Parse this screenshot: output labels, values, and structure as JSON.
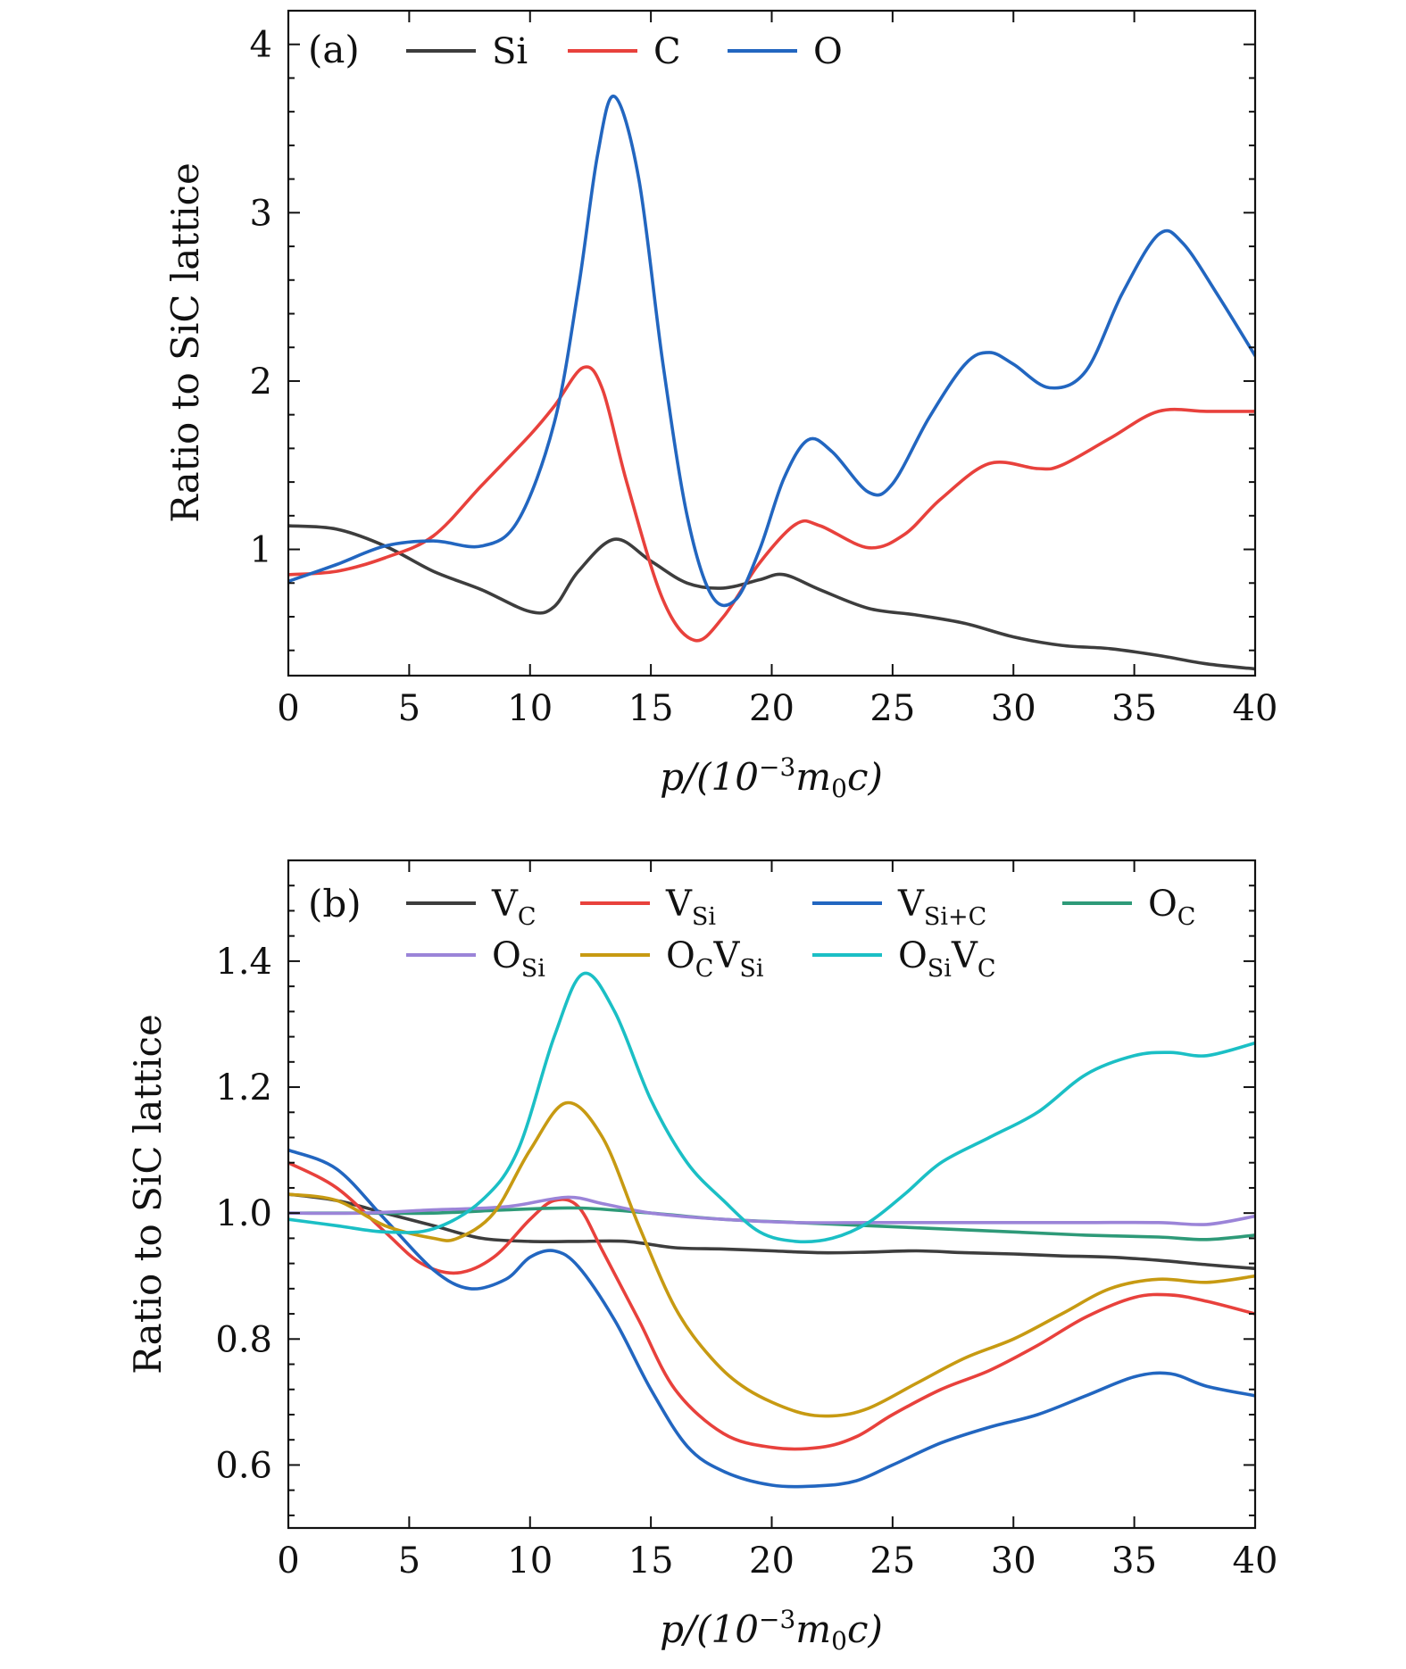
{
  "chart_data": [
    {
      "type": "line",
      "panel_label": "(a)",
      "ylabel": "Ratio to SiC lattice",
      "xlabel": {
        "base": "p/(10",
        "exp": "−3",
        "mid": "m",
        "sub": "0",
        "end": "c)"
      },
      "xlim": [
        0,
        40
      ],
      "ylim": [
        0.25,
        4.2
      ],
      "xticks": [
        0,
        5,
        10,
        15,
        20,
        25,
        30,
        35,
        40
      ],
      "yticks": [
        1,
        2,
        3,
        4
      ],
      "grid": false,
      "legend_position": "top",
      "series": [
        {
          "name": "Si",
          "name_sub": "",
          "name2": "",
          "name2_sub": "",
          "color": "#3d3d3d",
          "points": [
            [
              0,
              1.14
            ],
            [
              2,
              1.12
            ],
            [
              4,
              1.02
            ],
            [
              6,
              0.87
            ],
            [
              8,
              0.76
            ],
            [
              10,
              0.63
            ],
            [
              11,
              0.66
            ],
            [
              12,
              0.87
            ],
            [
              13.5,
              1.06
            ],
            [
              15,
              0.93
            ],
            [
              16.5,
              0.8
            ],
            [
              18,
              0.77
            ],
            [
              19.5,
              0.82
            ],
            [
              20.5,
              0.85
            ],
            [
              22,
              0.76
            ],
            [
              24,
              0.65
            ],
            [
              26,
              0.61
            ],
            [
              28,
              0.56
            ],
            [
              30,
              0.48
            ],
            [
              32,
              0.43
            ],
            [
              34,
              0.41
            ],
            [
              36,
              0.37
            ],
            [
              38,
              0.32
            ],
            [
              40,
              0.29
            ]
          ]
        },
        {
          "name": "C",
          "name_sub": "",
          "name2": "",
          "name2_sub": "",
          "color": "#e8413c",
          "points": [
            [
              0,
              0.85
            ],
            [
              2,
              0.87
            ],
            [
              4,
              0.95
            ],
            [
              6,
              1.08
            ],
            [
              8,
              1.38
            ],
            [
              10,
              1.68
            ],
            [
              11,
              1.85
            ],
            [
              12.2,
              2.08
            ],
            [
              13,
              1.95
            ],
            [
              14,
              1.4
            ],
            [
              15.5,
              0.7
            ],
            [
              16.8,
              0.46
            ],
            [
              18,
              0.6
            ],
            [
              19.5,
              0.92
            ],
            [
              21,
              1.15
            ],
            [
              22,
              1.14
            ],
            [
              24,
              1.01
            ],
            [
              25.5,
              1.09
            ],
            [
              27,
              1.3
            ],
            [
              29,
              1.51
            ],
            [
              31,
              1.48
            ],
            [
              32,
              1.5
            ],
            [
              34,
              1.66
            ],
            [
              36,
              1.82
            ],
            [
              38,
              1.82
            ],
            [
              40,
              1.82
            ]
          ]
        },
        {
          "name": "O",
          "name_sub": "",
          "name2": "",
          "name2_sub": "",
          "color": "#2266c0",
          "points": [
            [
              0,
              0.81
            ],
            [
              2,
              0.91
            ],
            [
              4,
              1.02
            ],
            [
              6,
              1.05
            ],
            [
              8,
              1.02
            ],
            [
              9.5,
              1.17
            ],
            [
              11,
              1.75
            ],
            [
              12,
              2.55
            ],
            [
              12.8,
              3.35
            ],
            [
              13.5,
              3.69
            ],
            [
              14.5,
              3.2
            ],
            [
              15.5,
              2.1
            ],
            [
              16.5,
              1.2
            ],
            [
              17.5,
              0.73
            ],
            [
              18.5,
              0.7
            ],
            [
              19.5,
              1.0
            ],
            [
              20.5,
              1.42
            ],
            [
              21.5,
              1.65
            ],
            [
              22.5,
              1.58
            ],
            [
              24,
              1.34
            ],
            [
              25,
              1.39
            ],
            [
              26.5,
              1.78
            ],
            [
              28,
              2.1
            ],
            [
              29,
              2.17
            ],
            [
              30,
              2.1
            ],
            [
              31.5,
              1.96
            ],
            [
              33,
              2.06
            ],
            [
              34.5,
              2.52
            ],
            [
              36,
              2.87
            ],
            [
              37,
              2.82
            ],
            [
              38.5,
              2.5
            ],
            [
              40,
              2.15
            ]
          ]
        }
      ]
    },
    {
      "type": "line",
      "panel_label": "(b)",
      "ylabel": "Ratio to SiC lattice",
      "xlabel": {
        "base": "p/(10",
        "exp": "−3",
        "mid": "m",
        "sub": "0",
        "end": "c)"
      },
      "xlim": [
        0,
        40
      ],
      "ylim": [
        0.5,
        1.56
      ],
      "xticks": [
        0,
        5,
        10,
        15,
        20,
        25,
        30,
        35,
        40
      ],
      "yticks": [
        0.6,
        0.8,
        1.0,
        1.2,
        1.4
      ],
      "ytick_labels": [
        "0.6",
        "0.8",
        "1.0",
        "1.2",
        "1.4"
      ],
      "grid": false,
      "legend_position": "top",
      "series": [
        {
          "name": "V",
          "name_sub": "C",
          "name2": "",
          "name2_sub": "",
          "color": "#3d3d3d",
          "points": [
            [
              0,
              1.03
            ],
            [
              2,
              1.02
            ],
            [
              4,
              1.0
            ],
            [
              6,
              0.98
            ],
            [
              8,
              0.96
            ],
            [
              10,
              0.955
            ],
            [
              12,
              0.955
            ],
            [
              14,
              0.955
            ],
            [
              16,
              0.945
            ],
            [
              18,
              0.943
            ],
            [
              20,
              0.94
            ],
            [
              22,
              0.937
            ],
            [
              24,
              0.938
            ],
            [
              26,
              0.94
            ],
            [
              28,
              0.937
            ],
            [
              30,
              0.935
            ],
            [
              32,
              0.932
            ],
            [
              34,
              0.93
            ],
            [
              36,
              0.925
            ],
            [
              38,
              0.918
            ],
            [
              40,
              0.912
            ]
          ]
        },
        {
          "name": "V",
          "name_sub": "Si",
          "name2": "",
          "name2_sub": "",
          "color": "#e8413c",
          "points": [
            [
              0,
              1.08
            ],
            [
              2,
              1.04
            ],
            [
              4,
              0.97
            ],
            [
              5.5,
              0.92
            ],
            [
              7,
              0.905
            ],
            [
              8.5,
              0.93
            ],
            [
              10,
              0.99
            ],
            [
              11,
              1.02
            ],
            [
              12,
              1.01
            ],
            [
              13,
              0.94
            ],
            [
              14.5,
              0.83
            ],
            [
              16,
              0.72
            ],
            [
              18,
              0.65
            ],
            [
              20,
              0.628
            ],
            [
              22,
              0.628
            ],
            [
              23.5,
              0.645
            ],
            [
              25,
              0.68
            ],
            [
              27,
              0.72
            ],
            [
              29,
              0.75
            ],
            [
              31,
              0.79
            ],
            [
              33,
              0.835
            ],
            [
              35,
              0.866
            ],
            [
              36.5,
              0.87
            ],
            [
              38,
              0.86
            ],
            [
              40,
              0.84
            ]
          ]
        },
        {
          "name": "V",
          "name_sub": "Si+C",
          "name2": "",
          "name2_sub": "",
          "color": "#2266c0",
          "points": [
            [
              0,
              1.1
            ],
            [
              2,
              1.07
            ],
            [
              4,
              0.99
            ],
            [
              6,
              0.91
            ],
            [
              7.5,
              0.88
            ],
            [
              9,
              0.895
            ],
            [
              10,
              0.93
            ],
            [
              11,
              0.94
            ],
            [
              12,
              0.915
            ],
            [
              13.5,
              0.83
            ],
            [
              15,
              0.72
            ],
            [
              16.5,
              0.63
            ],
            [
              18,
              0.59
            ],
            [
              20,
              0.568
            ],
            [
              22,
              0.567
            ],
            [
              23.5,
              0.575
            ],
            [
              25,
              0.6
            ],
            [
              27,
              0.635
            ],
            [
              29,
              0.66
            ],
            [
              31,
              0.68
            ],
            [
              33,
              0.71
            ],
            [
              35,
              0.74
            ],
            [
              36.5,
              0.745
            ],
            [
              38,
              0.725
            ],
            [
              40,
              0.71
            ]
          ]
        },
        {
          "name": "O",
          "name_sub": "C",
          "name2": "",
          "name2_sub": "",
          "color": "#2e9a78",
          "points": [
            [
              0,
              1.0
            ],
            [
              3,
              1.0
            ],
            [
              6,
              1.0
            ],
            [
              9,
              1.005
            ],
            [
              12,
              1.008
            ],
            [
              15,
              1.0
            ],
            [
              18,
              0.99
            ],
            [
              21,
              0.985
            ],
            [
              24,
              0.98
            ],
            [
              27,
              0.975
            ],
            [
              30,
              0.97
            ],
            [
              33,
              0.965
            ],
            [
              36,
              0.962
            ],
            [
              38,
              0.958
            ],
            [
              40,
              0.965
            ]
          ]
        },
        {
          "name": "O",
          "name_sub": "Si",
          "name2": "",
          "name2_sub": "",
          "color": "#9b84d8",
          "points": [
            [
              0,
              1.0
            ],
            [
              3,
              1.0
            ],
            [
              6,
              1.005
            ],
            [
              9,
              1.01
            ],
            [
              11.5,
              1.025
            ],
            [
              13,
              1.015
            ],
            [
              15,
              1.0
            ],
            [
              18,
              0.99
            ],
            [
              21,
              0.985
            ],
            [
              24,
              0.985
            ],
            [
              27,
              0.985
            ],
            [
              30,
              0.985
            ],
            [
              33,
              0.985
            ],
            [
              36,
              0.985
            ],
            [
              38,
              0.982
            ],
            [
              40,
              0.995
            ]
          ]
        },
        {
          "name": "O",
          "name_sub": "C",
          "name2": "V",
          "name2_sub": "Si",
          "color": "#c79a12",
          "points": [
            [
              0,
              1.03
            ],
            [
              2,
              1.02
            ],
            [
              4,
              0.98
            ],
            [
              6,
              0.96
            ],
            [
              7,
              0.96
            ],
            [
              8.5,
              1.0
            ],
            [
              10,
              1.1
            ],
            [
              11.5,
              1.175
            ],
            [
              13,
              1.12
            ],
            [
              14.5,
              0.98
            ],
            [
              16,
              0.85
            ],
            [
              17.5,
              0.77
            ],
            [
              19,
              0.72
            ],
            [
              21,
              0.685
            ],
            [
              22.5,
              0.678
            ],
            [
              24,
              0.69
            ],
            [
              26,
              0.73
            ],
            [
              28,
              0.77
            ],
            [
              30,
              0.8
            ],
            [
              32,
              0.84
            ],
            [
              34,
              0.88
            ],
            [
              36,
              0.895
            ],
            [
              38,
              0.89
            ],
            [
              40,
              0.9
            ]
          ]
        },
        {
          "name": "O",
          "name_sub": "Si",
          "name2": "V",
          "name2_sub": "C",
          "color": "#1bbfc5",
          "points": [
            [
              0,
              0.99
            ],
            [
              2,
              0.98
            ],
            [
              4,
              0.97
            ],
            [
              6,
              0.975
            ],
            [
              8,
              1.02
            ],
            [
              9.5,
              1.1
            ],
            [
              11,
              1.28
            ],
            [
              12.2,
              1.38
            ],
            [
              13.5,
              1.32
            ],
            [
              15,
              1.18
            ],
            [
              16.5,
              1.08
            ],
            [
              18,
              1.02
            ],
            [
              19.5,
              0.97
            ],
            [
              21,
              0.955
            ],
            [
              22.5,
              0.96
            ],
            [
              24,
              0.985
            ],
            [
              25.5,
              1.03
            ],
            [
              27,
              1.08
            ],
            [
              29,
              1.12
            ],
            [
              31,
              1.16
            ],
            [
              33,
              1.22
            ],
            [
              35,
              1.25
            ],
            [
              36.5,
              1.255
            ],
            [
              38,
              1.25
            ],
            [
              40,
              1.27
            ]
          ]
        }
      ]
    }
  ]
}
